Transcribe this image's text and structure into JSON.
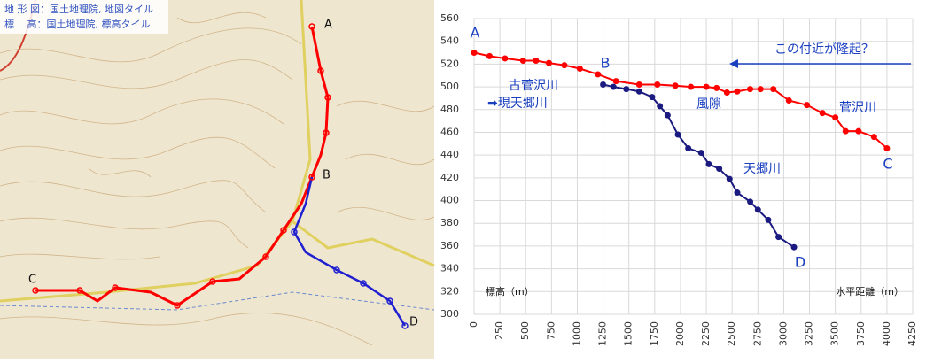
{
  "map": {
    "credits": [
      "地 形 図：国土地理院, 地図タイル",
      "標　 高：国土地理院, 標高タイル"
    ],
    "labels": [
      "A",
      "B",
      "C",
      "D"
    ]
  },
  "chart_data": {
    "type": "line",
    "xlim": [
      0,
      4250
    ],
    "xticks": [
      0,
      250,
      500,
      750,
      1000,
      1250,
      1500,
      1750,
      2000,
      2250,
      2500,
      2750,
      3000,
      3250,
      3500,
      3750,
      4000,
      4250
    ],
    "ylim": [
      300,
      560
    ],
    "yticks": [
      300,
      320,
      340,
      360,
      380,
      400,
      420,
      440,
      460,
      480,
      500,
      520,
      540,
      560
    ],
    "grid": true,
    "xlabel": "水平距離（m）",
    "ylabel": "標高（m）",
    "annotations": [
      "A",
      "B",
      "C",
      "D",
      "古菅沢川",
      "➡現天郷川",
      "風隙",
      "菅沢川",
      "天郷川",
      "この付近が隆起？"
    ],
    "series": [
      {
        "name": "菅沢川",
        "color": "#ff0000",
        "x": [
          0,
          150,
          300,
          475,
          600,
          725,
          875,
          1025,
          1200,
          1375,
          1600,
          1775,
          1950,
          2100,
          2250,
          2350,
          2450,
          2550,
          2675,
          2775,
          2900,
          3050,
          3225,
          3375,
          3500,
          3600,
          3725,
          3875,
          4000
        ],
        "values": [
          530,
          527,
          525,
          523,
          523,
          521,
          519,
          516,
          511,
          505,
          502,
          502,
          501,
          500,
          500,
          499,
          495,
          496,
          498,
          498,
          498,
          488,
          484,
          477,
          473,
          461,
          461,
          456,
          446
        ]
      },
      {
        "name": "天郷川",
        "color": "#1a1a80",
        "x": [
          1250,
          1350,
          1475,
          1600,
          1725,
          1800,
          1875,
          1975,
          2075,
          2200,
          2275,
          2375,
          2475,
          2550,
          2675,
          2750,
          2850,
          2950,
          3100
        ],
        "values": [
          502,
          500,
          498,
          496,
          491,
          483,
          475,
          458,
          446,
          442,
          432,
          428,
          419,
          407,
          399,
          392,
          383,
          368,
          359
        ]
      }
    ]
  }
}
